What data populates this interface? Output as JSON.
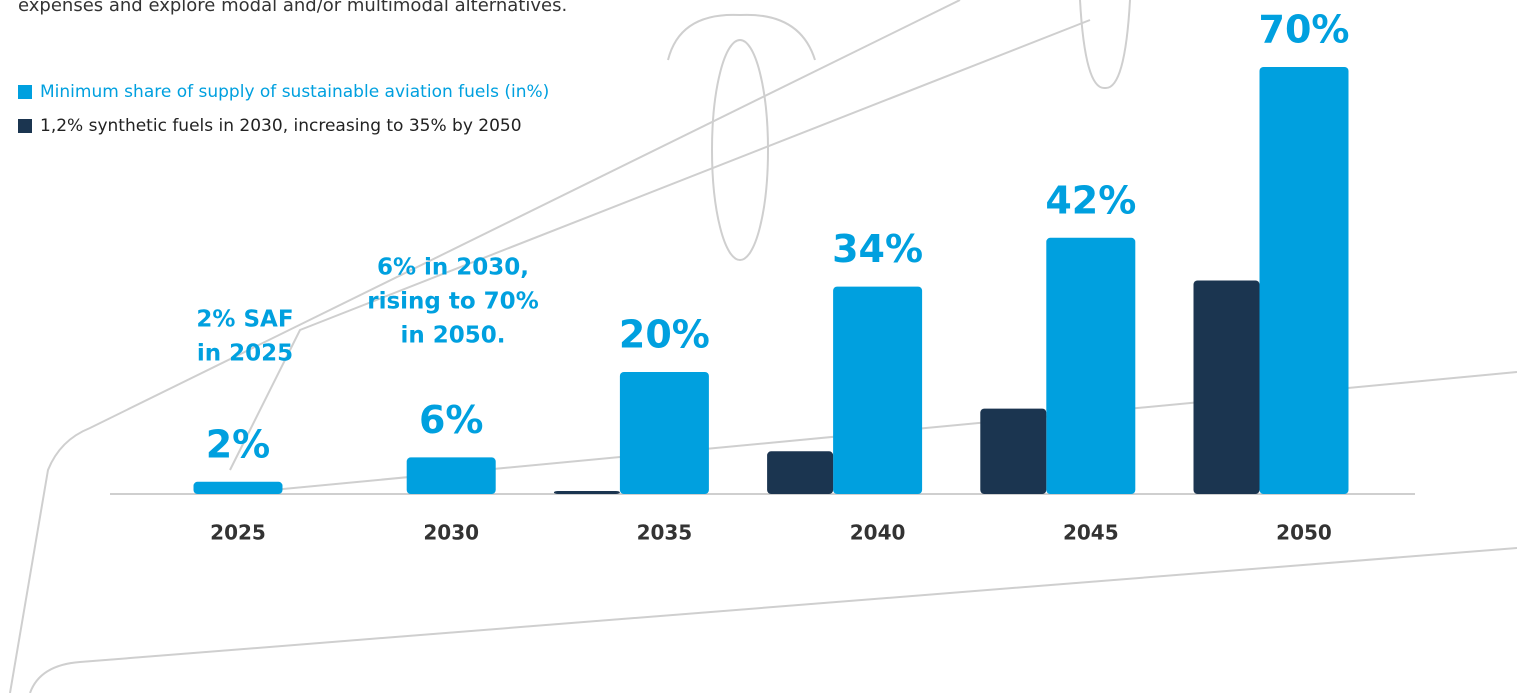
{
  "chart_data": {
    "type": "bar",
    "intro_text": "expenses and explore modal and/or multimodal alternatives.",
    "categories": [
      "2025",
      "2030",
      "2035",
      "2040",
      "2045",
      "2050"
    ],
    "series": [
      {
        "name": "Minimum share of supply of sustainable aviation fuels (in%)",
        "color": "#00a0df",
        "values": [
          2,
          6,
          20,
          34,
          42,
          70
        ],
        "value_labels": [
          "2%",
          "6%",
          "20%",
          "34%",
          "42%",
          "70%"
        ]
      },
      {
        "name": "1,2% synthetic fuels in 2030, increasing to 35% by 2050",
        "color": "#1b3550",
        "values": [
          null,
          null,
          0.5,
          7,
          14,
          35
        ]
      }
    ],
    "annotations": [
      [
        "2% SAF",
        "in 2025"
      ],
      [
        "6% in 2030,",
        "rising to 70%",
        "in 2050."
      ]
    ],
    "ylim": [
      0,
      70
    ]
  }
}
